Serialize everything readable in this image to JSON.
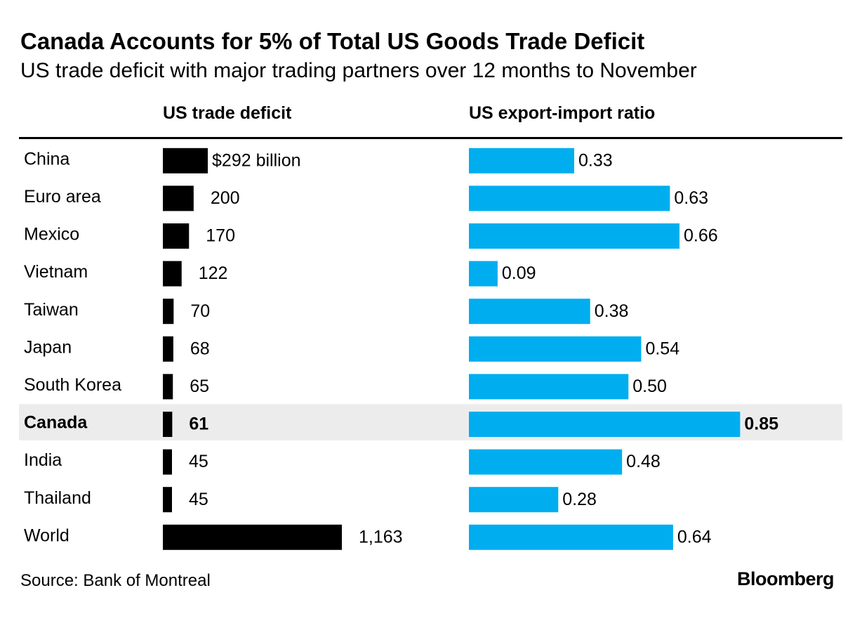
{
  "chart_data": {
    "type": "bar",
    "title": "Canada Accounts for 5% of Total US Goods Trade Deficit",
    "subtitle": "US trade deficit with major trading partners over 12 months to November",
    "categories": [
      "China",
      "Euro area",
      "Mexico",
      "Vietnam",
      "Taiwan",
      "Japan",
      "South Korea",
      "Canada",
      "India",
      "Thailand",
      "World"
    ],
    "highlight": "Canada",
    "series": [
      {
        "name": "US trade deficit",
        "values": [
          292,
          200,
          170,
          122,
          70,
          68,
          65,
          61,
          45,
          45,
          1163
        ],
        "labels": [
          "$292 billion",
          "200",
          "170",
          "122",
          "70",
          "68",
          "65",
          "61",
          "45",
          "45",
          "1,163"
        ],
        "color": "#000000"
      },
      {
        "name": "US export-import ratio",
        "values": [
          0.33,
          0.63,
          0.66,
          0.09,
          0.38,
          0.54,
          0.5,
          0.85,
          0.48,
          0.28,
          0.64
        ],
        "labels": [
          "0.33",
          "0.63",
          "0.66",
          "0.09",
          "0.38",
          "0.54",
          "0.50",
          "0.85",
          "0.48",
          "0.28",
          "0.64"
        ],
        "color": "#00aeef"
      }
    ],
    "xlabel": "",
    "ylabel": ""
  },
  "footer": {
    "source": "Source: Bank of Montreal",
    "brand": "Bloomberg"
  }
}
